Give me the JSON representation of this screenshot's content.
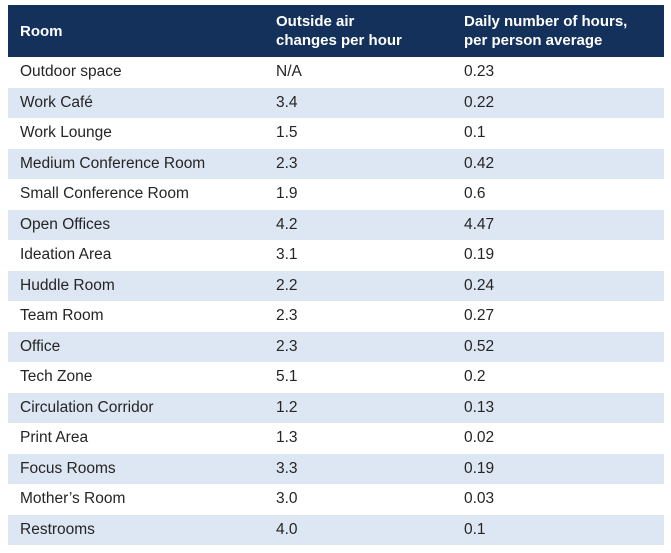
{
  "colors": {
    "header_bg": "#14315c",
    "header_text": "#ffffff",
    "row_alt_bg": "#dce7f3",
    "row_bg": "#ffffff",
    "body_text": "#262424"
  },
  "table": {
    "columns": [
      "Room",
      "Outside air\nchanges per hour",
      "Daily number of hours,\nper person average"
    ]
  },
  "chart_data": {
    "type": "table",
    "title": "",
    "columns": [
      "Room",
      "Outside air changes per hour",
      "Daily number of hours, per person average"
    ],
    "rows": [
      {
        "room": "Outdoor space",
        "ach": "N/A",
        "hours": "0.23"
      },
      {
        "room": "Work Café",
        "ach": "3.4",
        "hours": "0.22"
      },
      {
        "room": "Work Lounge",
        "ach": "1.5",
        "hours": "0.1"
      },
      {
        "room": "Medium Conference Room",
        "ach": "2.3",
        "hours": "0.42"
      },
      {
        "room": "Small Conference Room",
        "ach": "1.9",
        "hours": "0.6"
      },
      {
        "room": "Open Offices",
        "ach": "4.2",
        "hours": "4.47"
      },
      {
        "room": "Ideation Area",
        "ach": "3.1",
        "hours": "0.19"
      },
      {
        "room": "Huddle Room",
        "ach": "2.2",
        "hours": "0.24"
      },
      {
        "room": "Team Room",
        "ach": "2.3",
        "hours": "0.27"
      },
      {
        "room": "Office",
        "ach": "2.3",
        "hours": "0.52"
      },
      {
        "room": "Tech Zone",
        "ach": "5.1",
        "hours": "0.2"
      },
      {
        "room": "Circulation Corridor",
        "ach": "1.2",
        "hours": "0.13"
      },
      {
        "room": "Print Area",
        "ach": "1.3",
        "hours": "0.02"
      },
      {
        "room": "Focus Rooms",
        "ach": "3.3",
        "hours": "0.19"
      },
      {
        "room": "Mother’s Room",
        "ach": "3.0",
        "hours": "0.03"
      },
      {
        "room": "Restrooms",
        "ach": "4.0",
        "hours": "0.1"
      }
    ]
  }
}
